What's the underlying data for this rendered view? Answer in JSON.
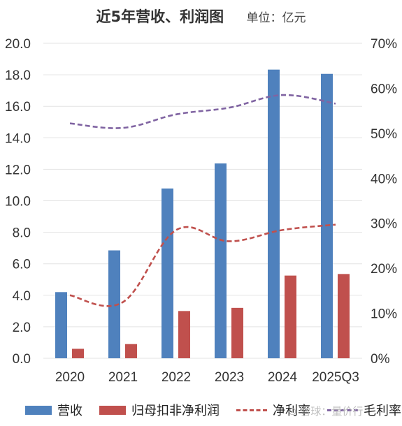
{
  "title": "近5年营收、利润图",
  "unit": "单位：亿元",
  "watermark": "⊙ 雪球：量价行",
  "colors": {
    "revenue": "#4f81bd",
    "profit": "#c0504d",
    "net_margin": "#c0504d",
    "gross_margin": "#8064a2",
    "grid": "#e3e3e3",
    "axis_text": "#333333"
  },
  "chart_data": {
    "type": "bar",
    "categories": [
      "2020",
      "2021",
      "2022",
      "2023",
      "2024",
      "2025Q3"
    ],
    "series": [
      {
        "name": "营收",
        "type": "bar",
        "axis": "left",
        "values": [
          4.2,
          6.85,
          10.78,
          12.37,
          18.33,
          18.06
        ]
      },
      {
        "name": "归母扣非净利润",
        "type": "bar",
        "axis": "left",
        "values": [
          0.6,
          0.9,
          3.0,
          3.2,
          5.25,
          5.35
        ]
      },
      {
        "name": "净利率",
        "type": "line",
        "style": "dashed",
        "axis": "right",
        "values": [
          0.14,
          0.125,
          0.285,
          0.26,
          0.285,
          0.297
        ]
      },
      {
        "name": "毛利率",
        "type": "line",
        "style": "dashed",
        "axis": "right",
        "values": [
          0.522,
          0.512,
          0.542,
          0.557,
          0.585,
          0.566
        ]
      }
    ],
    "left_axis": {
      "min": 0,
      "max": 20,
      "step": 2,
      "ticks": [
        "0.0",
        "2.0",
        "4.0",
        "6.0",
        "8.0",
        "10.0",
        "12.0",
        "14.0",
        "16.0",
        "18.0",
        "20.0"
      ]
    },
    "right_axis": {
      "min": 0,
      "max": 0.7,
      "step": 0.1,
      "ticks": [
        "0%",
        "10%",
        "20%",
        "30%",
        "40%",
        "50%",
        "60%",
        "70%"
      ]
    },
    "grid": true,
    "legend_position": "bottom"
  }
}
